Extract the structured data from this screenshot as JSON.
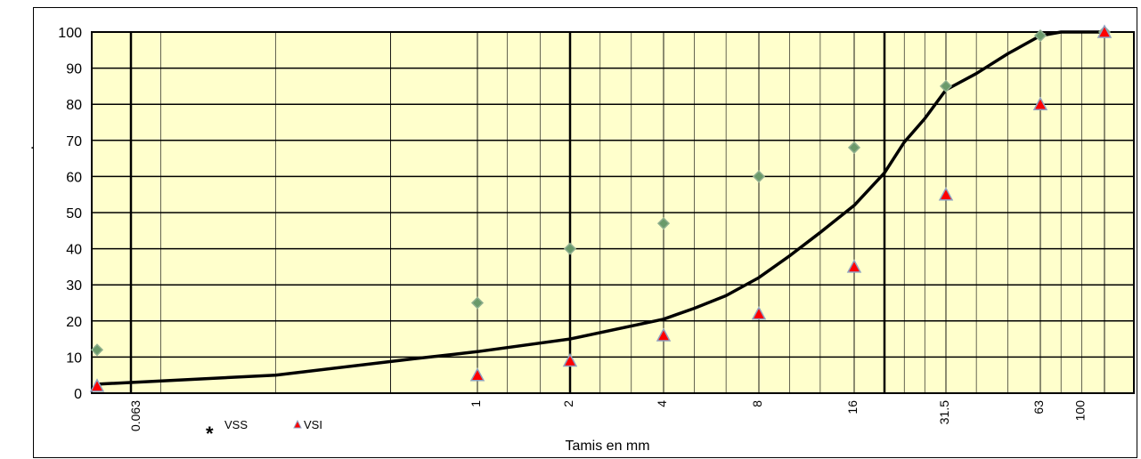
{
  "chart_data": {
    "type": "scatter",
    "title": "",
    "xlabel": "Tamis en mm",
    "ylabel": "",
    "x_scale": "log",
    "ylim": [
      0,
      100
    ],
    "y_ticks": [
      0,
      10,
      20,
      30,
      40,
      50,
      60,
      70,
      80,
      90,
      100
    ],
    "y_tick_labels": [
      "0",
      "10",
      "20",
      "30",
      "40",
      "50",
      "60",
      "70",
      "80",
      "90",
      "100"
    ],
    "x_tick_labels": [
      "0.063",
      "1",
      "2",
      "4",
      "8",
      "16",
      "31.5",
      "63",
      "100"
    ],
    "grid": true,
    "background": "#ffffcc",
    "series": [
      {
        "name": "VSS",
        "marker": "diamond",
        "color": "#6a9a6a",
        "points": [
          {
            "x": 0.05,
            "y": 12
          },
          {
            "x": 1,
            "y": 25
          },
          {
            "x": 2,
            "y": 40
          },
          {
            "x": 4,
            "y": 47
          },
          {
            "x": 8,
            "y": 60
          },
          {
            "x": 16,
            "y": 68
          },
          {
            "x": 40,
            "y": 85
          },
          {
            "x": 80,
            "y": 99
          },
          {
            "x": 160,
            "y": 100
          }
        ]
      },
      {
        "name": "VSI",
        "marker": "triangle",
        "color": "#ff0000",
        "points": [
          {
            "x": 0.05,
            "y": 2
          },
          {
            "x": 1,
            "y": 5
          },
          {
            "x": 2,
            "y": 9
          },
          {
            "x": 4,
            "y": 16
          },
          {
            "x": 8,
            "y": 22
          },
          {
            "x": 16,
            "y": 35
          },
          {
            "x": 40,
            "y": 55
          },
          {
            "x": 80,
            "y": 80
          },
          {
            "x": 160,
            "y": 100
          }
        ]
      },
      {
        "name": "",
        "marker": "line",
        "color": "#000000",
        "points": [
          {
            "x": 0.05,
            "y": 2.5
          },
          {
            "x": 0.2,
            "y": 5
          },
          {
            "x": 0.6,
            "y": 9.5
          },
          {
            "x": 1,
            "y": 11.5
          },
          {
            "x": 2,
            "y": 15
          },
          {
            "x": 4,
            "y": 20.5
          },
          {
            "x": 5,
            "y": 23.5
          },
          {
            "x": 6.3,
            "y": 27
          },
          {
            "x": 8,
            "y": 32
          },
          {
            "x": 10,
            "y": 38
          },
          {
            "x": 12.5,
            "y": 44.5
          },
          {
            "x": 16,
            "y": 52
          },
          {
            "x": 20,
            "y": 61
          },
          {
            "x": 25,
            "y": 69.5
          },
          {
            "x": 31.5,
            "y": 76
          },
          {
            "x": 40,
            "y": 84
          },
          {
            "x": 50,
            "y": 88.5
          },
          {
            "x": 63,
            "y": 94
          },
          {
            "x": 80,
            "y": 99
          },
          {
            "x": 100,
            "y": 100
          },
          {
            "x": 160,
            "y": 100
          }
        ]
      }
    ],
    "legend": {
      "placement": "bottom-left",
      "star_glyph": "*",
      "entries": [
        "VSS",
        "VSI"
      ]
    },
    "y_side_mark": "."
  }
}
